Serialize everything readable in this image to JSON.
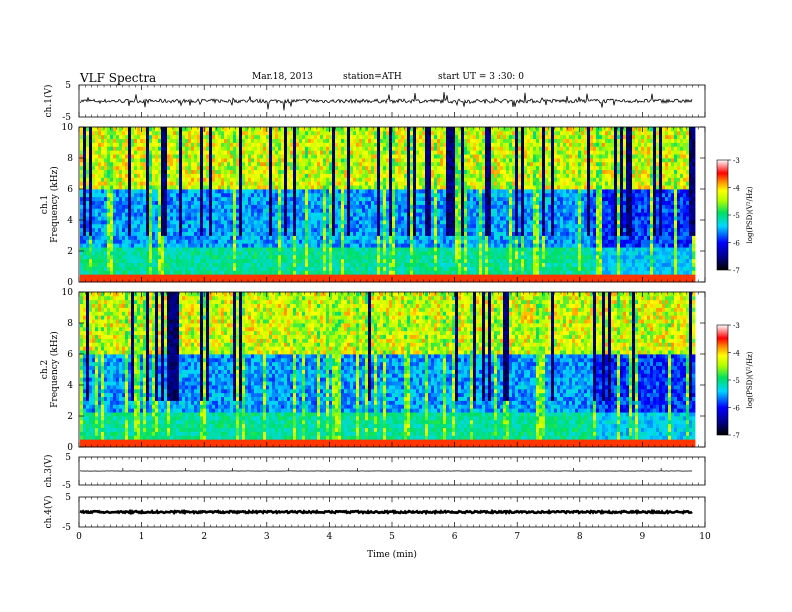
{
  "header": {
    "title": "VLF  Spectra",
    "date": "Mar.18, 2013",
    "station": "station=ATH",
    "start_ut": "start  UT  =   3  :30: 0"
  },
  "chart_data": [
    {
      "type": "line",
      "panel": "ch1-waveform",
      "ylabel": "ch.1(V)",
      "ylim": [
        -5,
        5
      ],
      "yticks": [
        "5",
        "-5"
      ],
      "baseline": 0,
      "noise_amplitude": 0.6
    },
    {
      "type": "heatmap",
      "panel": "ch1-spectrogram",
      "ylabel_lines": [
        "ch.1",
        "Frequency  (kHz)"
      ],
      "ylim": [
        0,
        10
      ],
      "yticks": [
        "0",
        "2",
        "4",
        "6",
        "8",
        "10"
      ],
      "colorbar": {
        "label": "log(PSD)(V²/Hz)",
        "range": [
          -7,
          -3
        ],
        "ticks": [
          "-3",
          "-4",
          "-5",
          "-6",
          "-7"
        ]
      },
      "data_end_min": 9.8
    },
    {
      "type": "heatmap",
      "panel": "ch2-spectrogram",
      "ylabel_lines": [
        "ch.2",
        "Frequency  (kHz)"
      ],
      "ylim": [
        0,
        10
      ],
      "yticks": [
        "0",
        "2",
        "4",
        "6",
        "8",
        "10"
      ],
      "colorbar": {
        "label": "log(PSD)(V²/Hz)",
        "range": [
          -7,
          -3
        ],
        "ticks": [
          "-3",
          "-4",
          "-5",
          "-6",
          "-7"
        ]
      },
      "data_end_min": 9.8
    },
    {
      "type": "line",
      "panel": "ch3-waveform",
      "ylabel": "ch.3(V)",
      "ylim": [
        -5,
        5
      ],
      "yticks": [
        "5",
        "-5"
      ],
      "baseline": 0,
      "noise_amplitude": 0.05
    },
    {
      "type": "line",
      "panel": "ch4-waveform",
      "ylabel": "ch.4(V)",
      "ylim": [
        -5,
        5
      ],
      "yticks": [
        "5",
        "-5"
      ],
      "baseline": 0,
      "noise_amplitude": 0.3
    }
  ],
  "xaxis": {
    "label": "Time  (min)",
    "xlim": [
      0,
      10
    ],
    "ticks": [
      "0",
      "1",
      "2",
      "3",
      "4",
      "5",
      "6",
      "7",
      "8",
      "9",
      "10"
    ]
  }
}
